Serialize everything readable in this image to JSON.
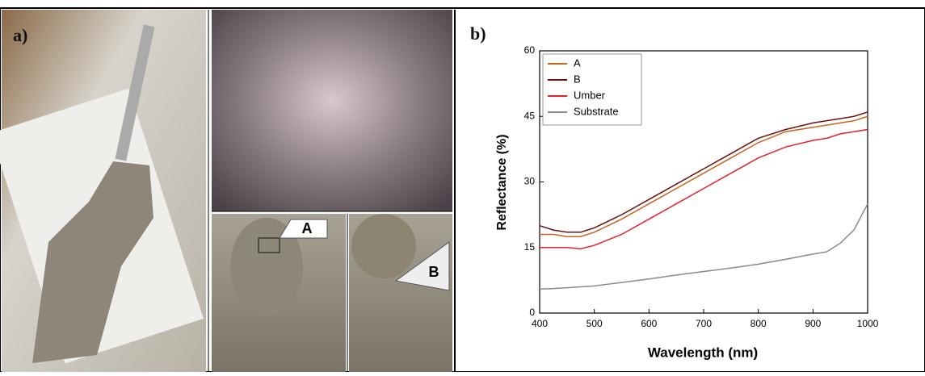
{
  "panels": {
    "a_label": "a)",
    "b_label": "b)",
    "callouts": [
      "A",
      "B"
    ]
  },
  "chart_data": {
    "type": "line",
    "x_label": "Wavelength (nm)",
    "y_label": "Reflectance (%)",
    "x": [
      400,
      425,
      450,
      475,
      500,
      550,
      600,
      650,
      700,
      750,
      800,
      850,
      900,
      925,
      950,
      975,
      1000
    ],
    "series": [
      {
        "name": "A",
        "color": "#c8641e",
        "values": [
          18,
          18,
          17.5,
          17.5,
          18.5,
          21.5,
          25,
          28.5,
          32,
          35.5,
          39,
          41.5,
          42.5,
          43,
          43.5,
          44,
          45
        ]
      },
      {
        "name": "B",
        "color": "#6e1010",
        "values": [
          20,
          19,
          18.5,
          18.5,
          19.5,
          22.5,
          26,
          29.5,
          33,
          36.5,
          40,
          42,
          43.5,
          44,
          44.5,
          45,
          46
        ]
      },
      {
        "name": "Umber",
        "color": "#e8202a",
        "values": [
          15,
          15,
          15,
          14.7,
          15.5,
          18,
          21.5,
          25,
          28.5,
          32,
          35.5,
          38,
          39.5,
          40,
          41,
          41.5,
          42
        ]
      },
      {
        "name": "Substrate",
        "color": "#8a8a8a",
        "values": [
          5.5,
          5.6,
          5.8,
          6,
          6.2,
          7,
          7.8,
          8.7,
          9.5,
          10.3,
          11.2,
          12.3,
          13.5,
          14,
          16,
          19,
          25
        ]
      }
    ],
    "xlim": [
      400,
      1000
    ],
    "xticks": [
      400,
      500,
      600,
      700,
      800,
      900,
      1000
    ],
    "ylim": [
      0,
      60
    ],
    "yticks": [
      0,
      15,
      30,
      45,
      60
    ],
    "legend": "upper left"
  }
}
